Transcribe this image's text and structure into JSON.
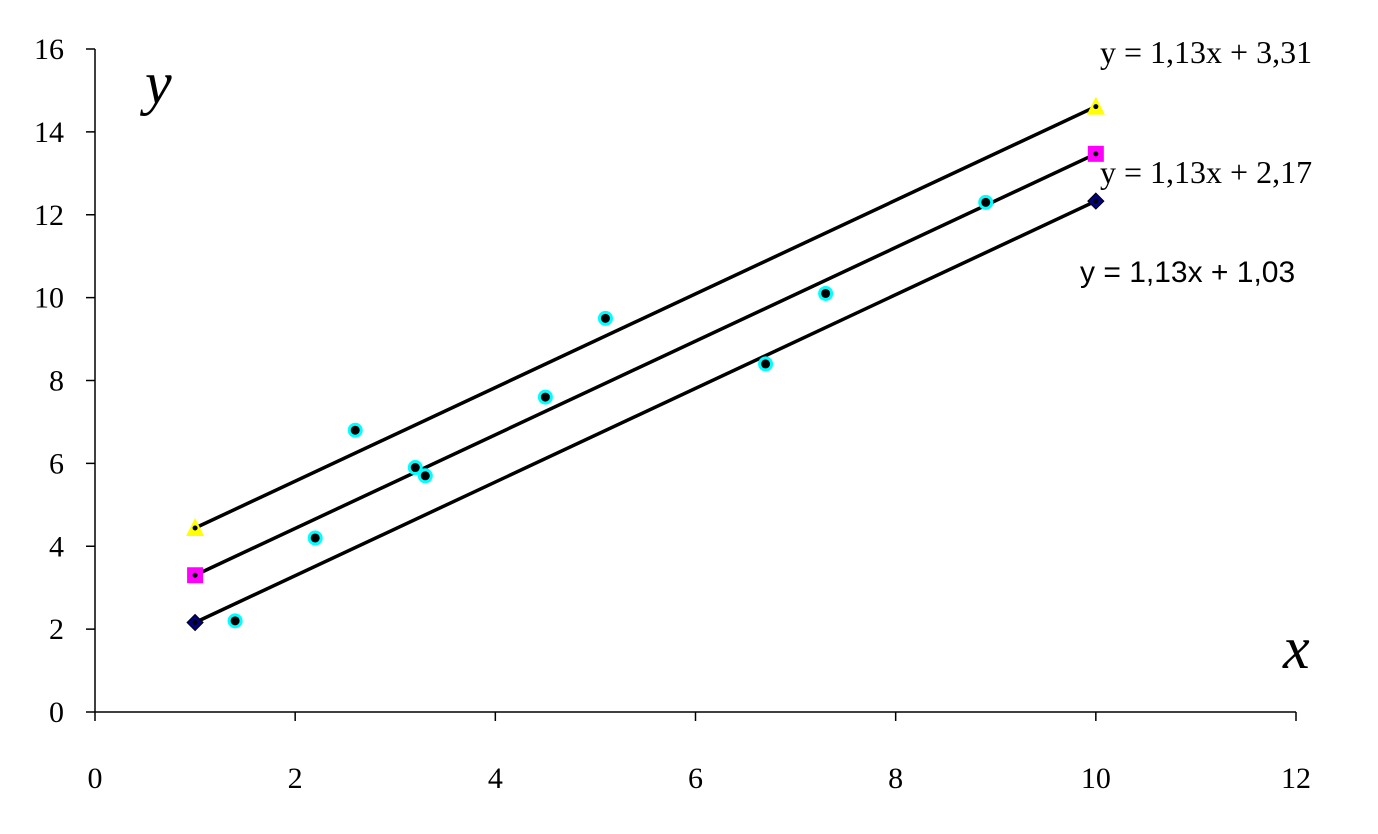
{
  "chart_data": {
    "type": "scatter",
    "xlabel": "x",
    "ylabel": "y",
    "xlim": [
      0,
      12
    ],
    "ylim": [
      0,
      16
    ],
    "x_ticks": [
      "0",
      "2",
      "4",
      "6",
      "8",
      "10",
      "12"
    ],
    "y_ticks": [
      "0",
      "2",
      "4",
      "6",
      "8",
      "10",
      "12",
      "14",
      "16"
    ],
    "grid": false,
    "points": [
      {
        "x": 1.4,
        "y": 2.2
      },
      {
        "x": 2.2,
        "y": 4.2
      },
      {
        "x": 2.6,
        "y": 6.8
      },
      {
        "x": 3.2,
        "y": 5.9
      },
      {
        "x": 3.3,
        "y": 5.7
      },
      {
        "x": 4.5,
        "y": 7.6
      },
      {
        "x": 5.1,
        "y": 9.5
      },
      {
        "x": 6.7,
        "y": 8.4
      },
      {
        "x": 7.3,
        "y": 10.1
      },
      {
        "x": 8.9,
        "y": 12.3
      }
    ],
    "lines": [
      {
        "equation": "y = 1,13x + 3,31",
        "slope": 1.13,
        "intercept": 3.31,
        "x_range": [
          1,
          10
        ],
        "marker": "triangle",
        "marker_color": "#ffff00"
      },
      {
        "equation": "y = 1,13x + 2,17",
        "slope": 1.13,
        "intercept": 2.17,
        "x_range": [
          1,
          10
        ],
        "marker": "square",
        "marker_color": "#ff00ff"
      },
      {
        "equation": "y = 1,13x + 1,03",
        "slope": 1.13,
        "intercept": 1.03,
        "x_range": [
          1,
          10
        ],
        "marker": "diamond",
        "marker_color": "#000080"
      }
    ],
    "point_colors": {
      "fill": "#000000",
      "ring": "#00ffff"
    }
  }
}
